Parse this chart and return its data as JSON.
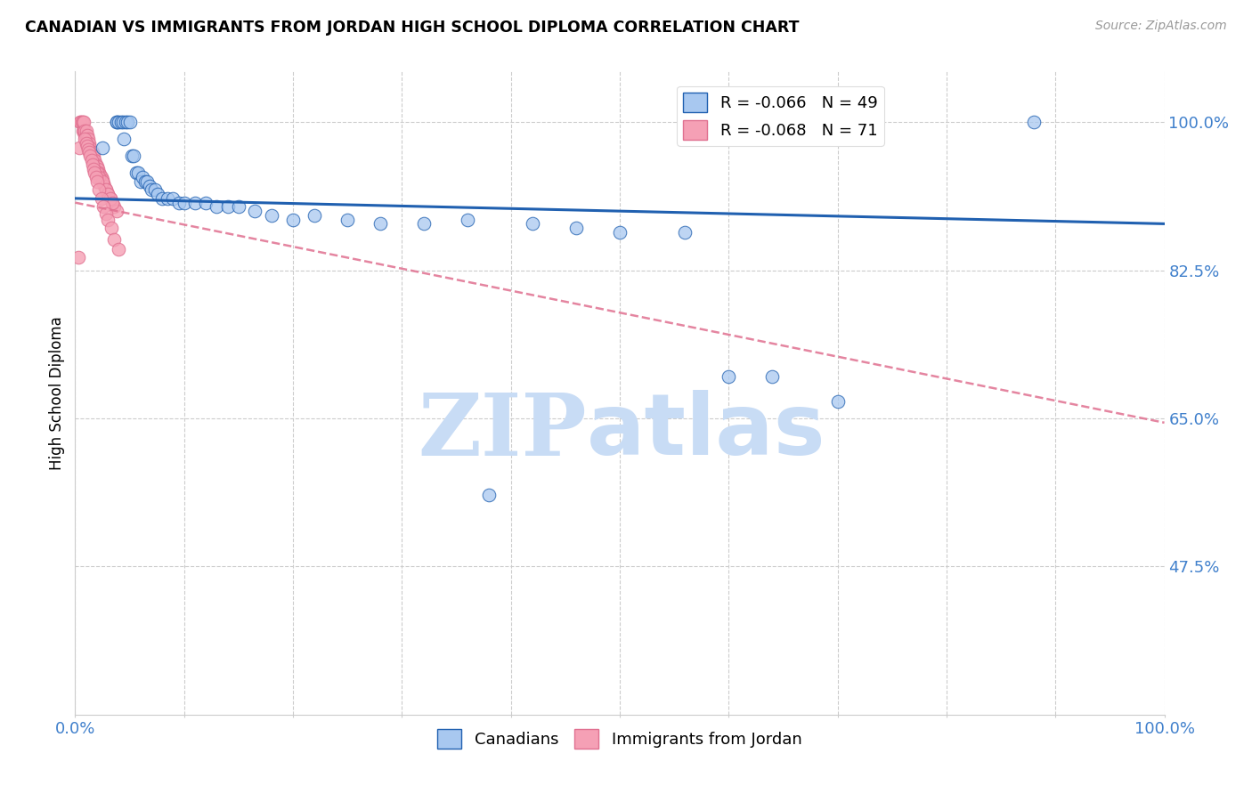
{
  "title": "CANADIAN VS IMMIGRANTS FROM JORDAN HIGH SCHOOL DIPLOMA CORRELATION CHART",
  "source": "Source: ZipAtlas.com",
  "ylabel": "High School Diploma",
  "xlabel": "",
  "xlim": [
    0.0,
    1.0
  ],
  "ylim": [
    0.3,
    1.06
  ],
  "yticks": [
    0.475,
    0.65,
    0.825,
    1.0
  ],
  "ytick_labels": [
    "47.5%",
    "65.0%",
    "82.5%",
    "100.0%"
  ],
  "legend_r_canadian": "-0.066",
  "legend_n_canadian": "49",
  "legend_r_jordan": "-0.068",
  "legend_n_jordan": "71",
  "blue_color": "#A8C8F0",
  "pink_color": "#F5A0B5",
  "line_blue": "#2060B0",
  "line_pink": "#E07090",
  "watermark_zip": "ZIP",
  "watermark_atlas": "atlas",
  "watermark_color": "#C8DCF5",
  "axis_color": "#CCCCCC",
  "tick_label_color": "#4080CC",
  "background_color": "#FFFFFF",
  "blue_trend_x0": 0.0,
  "blue_trend_y0": 0.91,
  "blue_trend_x1": 1.0,
  "blue_trend_y1": 0.88,
  "pink_trend_x0": 0.0,
  "pink_trend_y0": 0.905,
  "pink_trend_x1": 1.0,
  "pink_trend_y1": 0.645,
  "canadians_x": [
    0.025,
    0.038,
    0.038,
    0.04,
    0.042,
    0.044,
    0.045,
    0.046,
    0.048,
    0.05,
    0.052,
    0.054,
    0.056,
    0.058,
    0.06,
    0.062,
    0.064,
    0.066,
    0.068,
    0.07,
    0.073,
    0.076,
    0.08,
    0.085,
    0.09,
    0.095,
    0.1,
    0.11,
    0.12,
    0.13,
    0.14,
    0.15,
    0.165,
    0.18,
    0.2,
    0.22,
    0.25,
    0.28,
    0.32,
    0.36,
    0.42,
    0.46,
    0.5,
    0.56,
    0.6,
    0.64,
    0.7,
    0.88,
    0.38
  ],
  "canadians_y": [
    0.97,
    1.0,
    1.0,
    1.0,
    1.0,
    1.0,
    0.98,
    1.0,
    1.0,
    1.0,
    0.96,
    0.96,
    0.94,
    0.94,
    0.93,
    0.935,
    0.93,
    0.93,
    0.925,
    0.92,
    0.92,
    0.915,
    0.91,
    0.91,
    0.91,
    0.905,
    0.905,
    0.905,
    0.905,
    0.9,
    0.9,
    0.9,
    0.895,
    0.89,
    0.885,
    0.89,
    0.885,
    0.88,
    0.88,
    0.885,
    0.88,
    0.875,
    0.87,
    0.87,
    0.7,
    0.7,
    0.67,
    1.0,
    0.56
  ],
  "jordan_x": [
    0.004,
    0.005,
    0.005,
    0.006,
    0.007,
    0.007,
    0.008,
    0.008,
    0.009,
    0.009,
    0.01,
    0.01,
    0.01,
    0.011,
    0.011,
    0.012,
    0.012,
    0.013,
    0.013,
    0.014,
    0.014,
    0.015,
    0.015,
    0.016,
    0.016,
    0.017,
    0.017,
    0.018,
    0.019,
    0.02,
    0.021,
    0.022,
    0.023,
    0.024,
    0.025,
    0.026,
    0.027,
    0.028,
    0.03,
    0.032,
    0.034,
    0.036,
    0.038,
    0.02,
    0.022,
    0.025,
    0.028,
    0.03,
    0.032,
    0.034,
    0.009,
    0.01,
    0.011,
    0.012,
    0.013,
    0.014,
    0.015,
    0.016,
    0.017,
    0.018,
    0.019,
    0.02,
    0.022,
    0.024,
    0.026,
    0.028,
    0.03,
    0.033,
    0.036,
    0.04,
    0.003
  ],
  "jordan_y": [
    0.97,
    1.0,
    1.0,
    1.0,
    0.99,
    1.0,
    0.99,
    1.0,
    0.985,
    0.99,
    0.98,
    0.985,
    0.99,
    0.975,
    0.985,
    0.975,
    0.98,
    0.97,
    0.975,
    0.965,
    0.97,
    0.96,
    0.965,
    0.96,
    0.965,
    0.96,
    0.955,
    0.955,
    0.95,
    0.948,
    0.945,
    0.94,
    0.938,
    0.935,
    0.932,
    0.928,
    0.925,
    0.92,
    0.915,
    0.91,
    0.905,
    0.9,
    0.895,
    0.94,
    0.935,
    0.93,
    0.92,
    0.915,
    0.91,
    0.905,
    0.98,
    0.975,
    0.972,
    0.968,
    0.965,
    0.96,
    0.955,
    0.95,
    0.945,
    0.94,
    0.935,
    0.93,
    0.92,
    0.91,
    0.9,
    0.892,
    0.885,
    0.875,
    0.862,
    0.85,
    0.84
  ]
}
